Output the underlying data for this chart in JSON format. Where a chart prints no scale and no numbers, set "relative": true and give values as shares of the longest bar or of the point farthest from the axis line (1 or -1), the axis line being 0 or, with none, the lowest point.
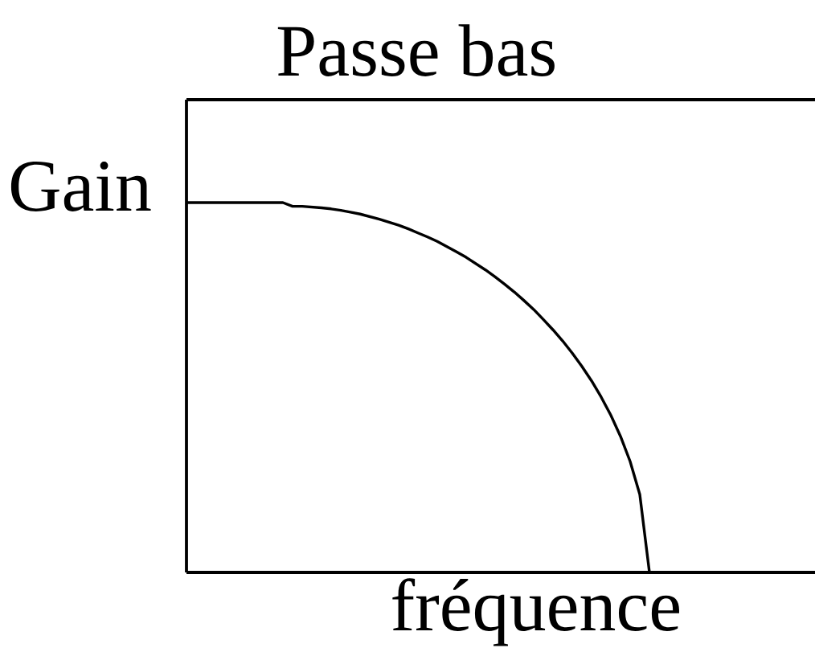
{
  "chart_data": {
    "type": "line",
    "title": "Passe bas",
    "xlabel": "fréquence",
    "ylabel": "Gain",
    "relative": true,
    "color": "#000000",
    "categories": [
      null,
      null,
      null,
      null,
      null,
      null,
      null,
      null,
      null,
      null,
      null,
      null,
      null,
      null,
      null,
      null,
      null,
      null,
      null,
      null,
      null,
      null,
      null,
      null,
      null,
      null,
      null,
      null,
      null,
      null,
      null,
      null,
      null,
      null,
      null,
      null,
      null,
      null,
      null,
      null,
      null,
      null,
      null,
      null,
      null,
      null,
      null,
      null,
      null
    ],
    "values": [
      1,
      1,
      1,
      1,
      1,
      1,
      1,
      1,
      1,
      1,
      1,
      0.99,
      0.99,
      0.988,
      0.986,
      0.983,
      0.979,
      0.974,
      0.969,
      0.962,
      0.955,
      0.947,
      0.939,
      0.929,
      0.918,
      0.907,
      0.895,
      0.881,
      0.867,
      0.852,
      0.835,
      0.818,
      0.799,
      0.779,
      0.758,
      0.735,
      0.711,
      0.684,
      0.656,
      0.626,
      0.593,
      0.557,
      0.518,
      0.474,
      0.425,
      0.368,
      0.3,
      0.211,
      0
    ]
  }
}
